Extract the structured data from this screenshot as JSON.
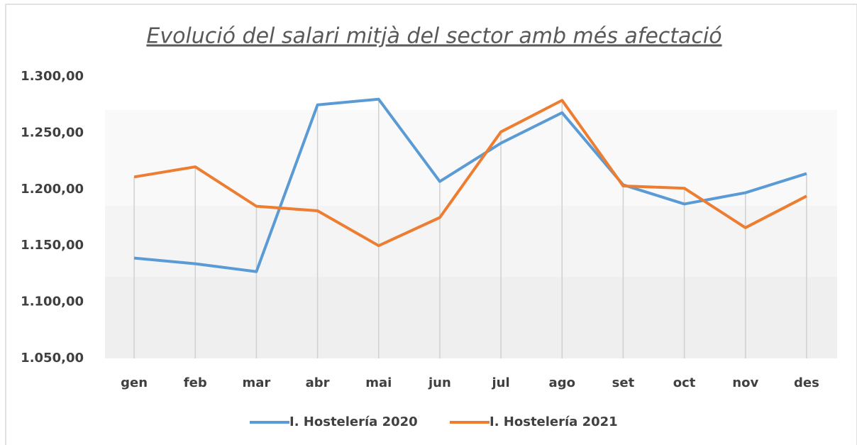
{
  "chart_data": {
    "type": "line",
    "title": "Evolució  del salari  mitjà  del sector  amb  més afectació",
    "categories": [
      "gen",
      "feb",
      "mar",
      "abr",
      "mai",
      "jun",
      "jul",
      "ago",
      "set",
      "oct",
      "nov",
      "des"
    ],
    "series": [
      {
        "name": "I. Hostelería 2020",
        "color": "#5b9bd5",
        "values": [
          1139,
          1134,
          1127,
          1275,
          1280,
          1207,
          1241,
          1268,
          1204,
          1187,
          1197,
          1214
        ]
      },
      {
        "name": "I. Hostelería 2021",
        "color": "#ed7d31",
        "values": [
          1211,
          1220,
          1185,
          1181,
          1150,
          1175,
          1251,
          1279,
          1203,
          1201,
          1166,
          1194
        ]
      }
    ],
    "ylim": [
      1050,
      1300
    ],
    "yticks": [
      {
        "value": 1050,
        "label": "1.050,00"
      },
      {
        "value": 1100,
        "label": "1.100,00"
      },
      {
        "value": 1150,
        "label": "1.150,00"
      },
      {
        "value": 1200,
        "label": "1.200,00"
      },
      {
        "value": 1250,
        "label": "1.250,00"
      },
      {
        "value": 1300,
        "label": "1.300,00"
      }
    ],
    "legend": "bottom"
  }
}
